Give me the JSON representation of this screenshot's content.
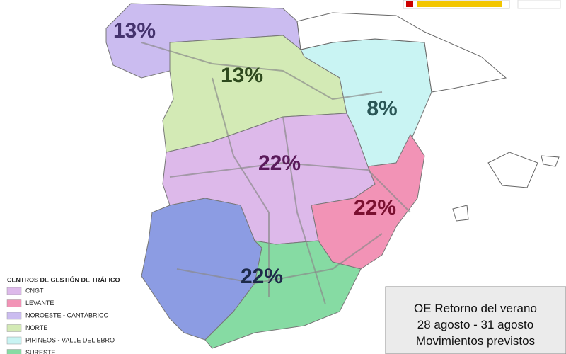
{
  "regions": [
    {
      "name": "noroeste",
      "label": "13%",
      "color": "#cbbcf0",
      "text_color": "#45336e"
    },
    {
      "name": "norte",
      "label": "13%",
      "color": "#d3eab5",
      "text_color": "#2e4a1e"
    },
    {
      "name": "pirineos",
      "label": "8%",
      "color": "#c9f4f3",
      "text_color": "#2a5656"
    },
    {
      "name": "cngt",
      "label": "22%",
      "color": "#ddb9ea",
      "text_color": "#5a1a5a"
    },
    {
      "name": "levante",
      "label": "22%",
      "color": "#f293b6",
      "text_color": "#7a1030"
    },
    {
      "name": "sur",
      "label": "22%",
      "color": "#8c9ce3",
      "text_color": "#1e2a4a"
    },
    {
      "name": "sureste",
      "label": null,
      "color": "#86dba3",
      "text_color": "#1e4a2e"
    }
  ],
  "legend": {
    "title": "CENTROS DE GESTIÓN DE TRÁFICO",
    "items": [
      {
        "label": "CNGT",
        "color": "#ddb9ea"
      },
      {
        "label": "LEVANTE",
        "color": "#f293b6"
      },
      {
        "label": "NOROESTE - CANTÁBRICO",
        "color": "#cbbcf0"
      },
      {
        "label": "NORTE",
        "color": "#d3eab5"
      },
      {
        "label": "PIRINEOS - VALLE DEL EBRO",
        "color": "#c9f4f3"
      },
      {
        "label": "SURESTE",
        "color": "#86dba3"
      }
    ]
  },
  "info_box": {
    "lines": [
      "OE Retorno del verano",
      "28 agosto - 31 agosto",
      "Movimientos previstos"
    ]
  }
}
